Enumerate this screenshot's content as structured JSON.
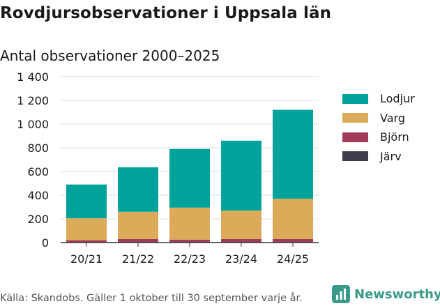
{
  "header": {
    "title": "Rovdjursobservationer i Uppsala län",
    "subtitle": "Antal observationer 2000–2025"
  },
  "footer": {
    "source": "Källa: Skandobs. Gäller 1 oktober till 30 september varje år.",
    "brand": "Newsworthy",
    "brand_color": "#3a9a8a"
  },
  "chart_data": {
    "type": "bar",
    "stacked": true,
    "categories": [
      "20/21",
      "21/22",
      "22/23",
      "23/24",
      "24/25"
    ],
    "series": [
      {
        "name": "Järv",
        "color": "#3d3d4a",
        "values": [
          5,
          5,
          5,
          5,
          5
        ]
      },
      {
        "name": "Björn",
        "color": "#a23b5a",
        "values": [
          15,
          25,
          20,
          25,
          25
        ]
      },
      {
        "name": "Varg",
        "color": "#dbab5a",
        "values": [
          185,
          230,
          270,
          240,
          340
        ]
      },
      {
        "name": "Lodjur",
        "color": "#00a39b",
        "values": [
          285,
          375,
          495,
          590,
          750
        ]
      }
    ],
    "legend_order": [
      "Lodjur",
      "Varg",
      "Björn",
      "Järv"
    ],
    "ylim": [
      0,
      1400
    ],
    "yticks": [
      0,
      200,
      400,
      600,
      800,
      1000,
      1200,
      1400
    ],
    "ytick_labels": [
      "0",
      "200",
      "400",
      "600",
      "800",
      "1 000",
      "1 200",
      "1 400"
    ],
    "grid": true,
    "legend_position": "right"
  }
}
